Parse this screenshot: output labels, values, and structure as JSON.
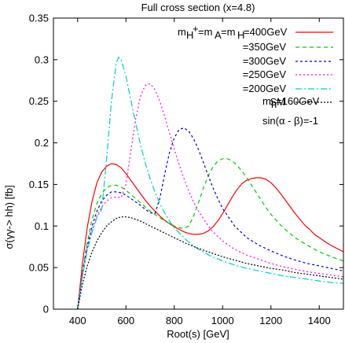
{
  "chart_data": {
    "type": "line",
    "title": "Full cross section (x=4.8)",
    "xlabel": "Root(s) [GeV]",
    "ylabel": "σ(γγ-> hh)  [fb]",
    "xlim": [
      300,
      1500
    ],
    "ylim": [
      0,
      0.35
    ],
    "xticks": [
      400,
      600,
      800,
      1000,
      1200,
      1400
    ],
    "yticks": [
      0,
      0.05,
      0.1,
      0.15,
      0.2,
      0.25,
      0.3,
      0.35
    ],
    "ytick_labels": [
      "0",
      "0.05",
      "0.1",
      "0.15",
      "0.2",
      "0.25",
      "0.3",
      "0.35"
    ],
    "grid": false,
    "legend_position": "top-right",
    "series": [
      {
        "name": "=400GeV",
        "color": "#ff0000",
        "dash": "solid",
        "x": [
          400,
          420,
          440,
          460,
          480,
          500,
          520,
          540,
          560,
          580,
          600,
          620,
          640,
          660,
          680,
          700,
          720,
          740,
          760,
          780,
          800,
          820,
          840,
          860,
          880,
          900,
          920,
          940,
          960,
          980,
          1000,
          1020,
          1040,
          1060,
          1080,
          1100,
          1120,
          1140,
          1160,
          1180,
          1200,
          1220,
          1240,
          1260,
          1280,
          1300,
          1320,
          1340,
          1360,
          1380,
          1400,
          1420,
          1440,
          1460,
          1480,
          1500
        ],
        "values": [
          0,
          0.055,
          0.098,
          0.13,
          0.152,
          0.165,
          0.172,
          0.175,
          0.174,
          0.17,
          0.163,
          0.155,
          0.147,
          0.139,
          0.131,
          0.124,
          0.118,
          0.112,
          0.107,
          0.103,
          0.099,
          0.096,
          0.093,
          0.091,
          0.09,
          0.09,
          0.091,
          0.094,
          0.099,
          0.106,
          0.115,
          0.125,
          0.135,
          0.144,
          0.151,
          0.155,
          0.157,
          0.158,
          0.158,
          0.156,
          0.152,
          0.146,
          0.139,
          0.131,
          0.123,
          0.115,
          0.108,
          0.101,
          0.096,
          0.09,
          0.086,
          0.082,
          0.078,
          0.075,
          0.072,
          0.069
        ]
      },
      {
        "name": "=350GeV",
        "color": "#00cc00",
        "dash": "5,4",
        "x": [
          400,
          420,
          440,
          460,
          480,
          500,
          520,
          540,
          560,
          580,
          600,
          620,
          640,
          660,
          680,
          700,
          720,
          740,
          760,
          780,
          800,
          820,
          840,
          860,
          880,
          900,
          920,
          940,
          960,
          980,
          1000,
          1020,
          1040,
          1060,
          1080,
          1100,
          1120,
          1140,
          1160,
          1180,
          1200,
          1250,
          1300,
          1350,
          1400,
          1450,
          1500
        ],
        "values": [
          0,
          0.045,
          0.08,
          0.108,
          0.127,
          0.139,
          0.146,
          0.149,
          0.149,
          0.147,
          0.143,
          0.138,
          0.133,
          0.128,
          0.123,
          0.118,
          0.114,
          0.11,
          0.106,
          0.103,
          0.1,
          0.098,
          0.097,
          0.1,
          0.112,
          0.128,
          0.145,
          0.16,
          0.171,
          0.178,
          0.181,
          0.181,
          0.178,
          0.173,
          0.166,
          0.158,
          0.149,
          0.14,
          0.131,
          0.122,
          0.114,
          0.098,
          0.086,
          0.077,
          0.069,
          0.063,
          0.058
        ]
      },
      {
        "name": "=300GeV",
        "color": "#0000cc",
        "dash": "3,3",
        "x": [
          400,
          420,
          440,
          460,
          480,
          500,
          520,
          540,
          560,
          580,
          600,
          620,
          640,
          660,
          680,
          700,
          720,
          740,
          760,
          780,
          800,
          820,
          840,
          860,
          880,
          900,
          920,
          940,
          960,
          980,
          1000,
          1050,
          1100,
          1150,
          1200,
          1250,
          1300,
          1350,
          1400,
          1450,
          1500
        ],
        "values": [
          0,
          0.042,
          0.075,
          0.1,
          0.118,
          0.13,
          0.137,
          0.141,
          0.141,
          0.14,
          0.137,
          0.133,
          0.129,
          0.125,
          0.12,
          0.116,
          0.115,
          0.133,
          0.162,
          0.188,
          0.206,
          0.216,
          0.218,
          0.214,
          0.205,
          0.192,
          0.177,
          0.161,
          0.146,
          0.133,
          0.121,
          0.1,
          0.086,
          0.077,
          0.07,
          0.064,
          0.059,
          0.055,
          0.052,
          0.049,
          0.046
        ]
      },
      {
        "name": "=250GeV",
        "color": "#ff00ff",
        "dash": "2,3",
        "x": [
          400,
          420,
          440,
          460,
          480,
          500,
          520,
          540,
          560,
          580,
          600,
          620,
          640,
          660,
          680,
          700,
          720,
          740,
          760,
          780,
          800,
          820,
          840,
          860,
          880,
          900,
          950,
          1000,
          1050,
          1100,
          1150,
          1200,
          1250,
          1300,
          1350,
          1400,
          1450,
          1500
        ],
        "values": [
          0,
          0.04,
          0.071,
          0.095,
          0.112,
          0.123,
          0.13,
          0.134,
          0.135,
          0.134,
          0.15,
          0.19,
          0.228,
          0.256,
          0.269,
          0.271,
          0.264,
          0.25,
          0.232,
          0.212,
          0.192,
          0.174,
          0.157,
          0.142,
          0.129,
          0.118,
          0.096,
          0.082,
          0.072,
          0.065,
          0.06,
          0.055,
          0.051,
          0.048,
          0.045,
          0.043,
          0.041,
          0.039
        ]
      },
      {
        "name": "=200GeV",
        "color": "#00cccc",
        "dash": "8,3,2,3",
        "x": [
          400,
          420,
          440,
          460,
          480,
          500,
          520,
          540,
          560,
          570,
          580,
          600,
          620,
          640,
          660,
          680,
          700,
          720,
          740,
          760,
          780,
          800,
          850,
          900,
          950,
          1000,
          1050,
          1100,
          1150,
          1200,
          1250,
          1300,
          1350,
          1400,
          1450,
          1500
        ],
        "values": [
          0,
          0.04,
          0.07,
          0.093,
          0.11,
          0.12,
          0.18,
          0.25,
          0.296,
          0.303,
          0.3,
          0.28,
          0.252,
          0.224,
          0.198,
          0.176,
          0.157,
          0.141,
          0.127,
          0.116,
          0.106,
          0.098,
          0.083,
          0.072,
          0.064,
          0.058,
          0.053,
          0.049,
          0.046,
          0.043,
          0.04,
          0.038,
          0.036,
          0.034,
          0.032,
          0.031
        ]
      },
      {
        "name": "SM",
        "color": "#000000",
        "dash": "2,2",
        "x": [
          400,
          420,
          440,
          460,
          480,
          500,
          520,
          540,
          560,
          580,
          600,
          620,
          640,
          660,
          680,
          700,
          750,
          800,
          850,
          900,
          950,
          1000,
          1050,
          1100,
          1150,
          1200,
          1250,
          1300,
          1350,
          1400,
          1450,
          1500
        ],
        "values": [
          0,
          0.03,
          0.052,
          0.069,
          0.082,
          0.092,
          0.1,
          0.105,
          0.109,
          0.111,
          0.111,
          0.11,
          0.108,
          0.106,
          0.103,
          0.1,
          0.093,
          0.086,
          0.079,
          0.073,
          0.068,
          0.063,
          0.059,
          0.055,
          0.052,
          0.049,
          0.047,
          0.044,
          0.042,
          0.04,
          0.038,
          0.036
        ]
      }
    ],
    "legend_header": "m_H+=m_A=m_H",
    "annotations": [
      "m_h=160GeV",
      "sin(α - β)=-1"
    ]
  }
}
